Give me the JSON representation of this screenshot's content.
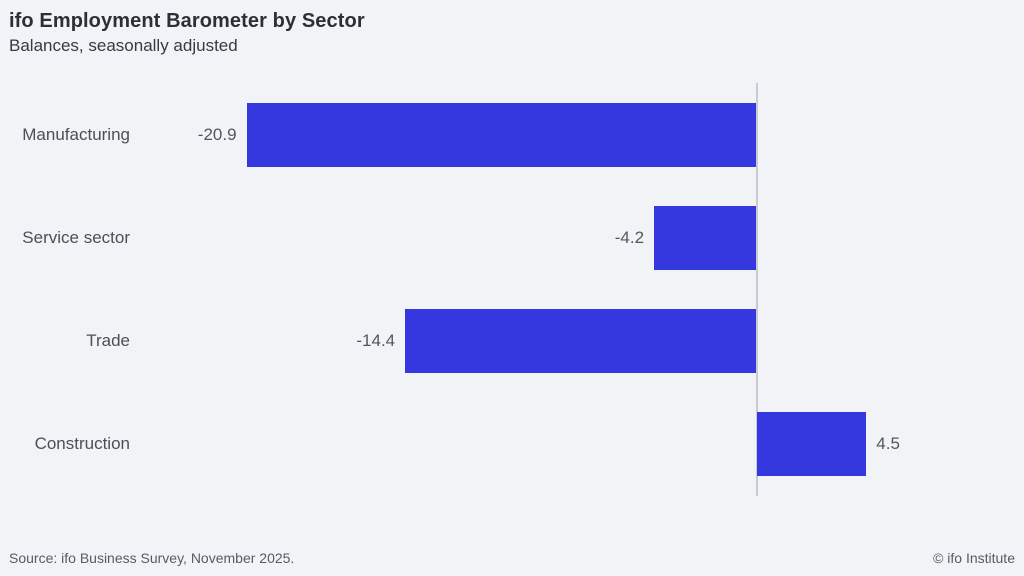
{
  "header": {
    "title": "ifo Employment Barometer by Sector",
    "subtitle": "Balances, seasonally adjusted"
  },
  "footer": {
    "source": "Source: ifo Business Survey, November 2025.",
    "copyright": "© ifo Institute"
  },
  "colors": {
    "background": "#f2f3f7",
    "bar": "#3438de",
    "zero_line": "#c9cbd4",
    "title_text": "#2c2f38",
    "label_text": "#4c4f59",
    "footer_text": "#565b66"
  },
  "chart_data": {
    "type": "bar",
    "orientation": "horizontal",
    "title": "ifo Employment Barometer by Sector",
    "subtitle": "Balances, seasonally adjusted",
    "categories": [
      "Manufacturing",
      "Service sector",
      "Trade",
      "Construction"
    ],
    "values": [
      -20.9,
      -4.2,
      -14.4,
      4.5
    ],
    "value_labels": [
      "-20.9",
      "-4.2",
      "-14.4",
      "4.5"
    ],
    "xlabel": "",
    "ylabel": "",
    "xlim": [
      -25,
      10
    ],
    "grid": false,
    "legend": null,
    "zero_baseline": true,
    "annotations": []
  }
}
